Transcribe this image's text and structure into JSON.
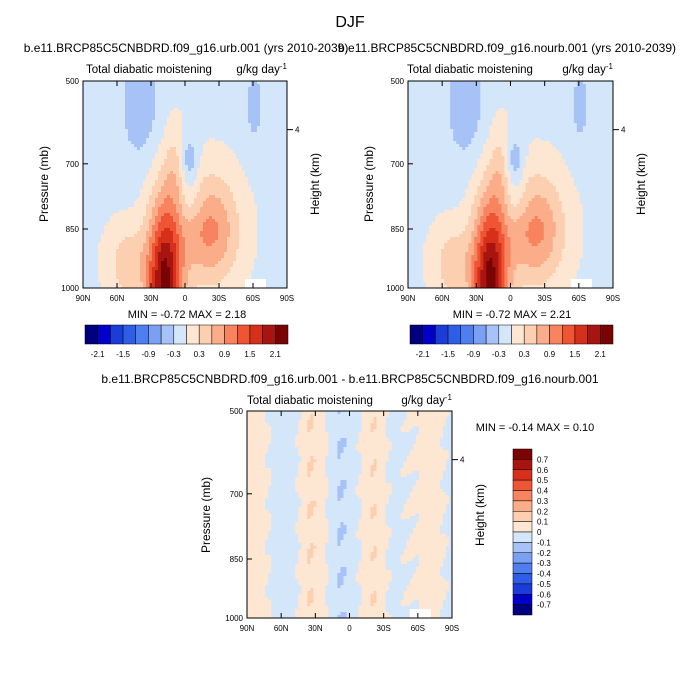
{
  "figure_title": "DJF",
  "chart_data": [
    {
      "type": "heatmap",
      "title": "b.e11.BRCP85C5CNBDRD.f09_g16.urb.001 (yrs 2010-2039)",
      "subtitle_left": "Total diabatic moistening",
      "units": "g/kg day",
      "units_exp": "-1",
      "ylabel": "Pressure (mb)",
      "ylabel_right": "Height (km)",
      "x_ticks": [
        "90N",
        "60N",
        "30N",
        "0",
        "30S",
        "60S",
        "90S"
      ],
      "y_ticks": [
        "500",
        "700",
        "850",
        "1000"
      ],
      "right_ticks": [
        "4"
      ],
      "min_max": "MIN = -0.72  MAX =  2.18",
      "colorbar_labels": [
        "-2.1",
        "-1.5",
        "-0.9",
        "-0.3",
        "0.3",
        "0.9",
        "1.5",
        "2.1"
      ]
    },
    {
      "type": "heatmap",
      "title": "b.e11.BRCP85C5CNBDRD.f09_g16.nourb.001 (yrs 2010-2039)",
      "subtitle_left": "Total diabatic moistening",
      "units": "g/kg day",
      "units_exp": "-1",
      "ylabel": "Pressure (mb)",
      "ylabel_right": "Height (km)",
      "x_ticks": [
        "90N",
        "60N",
        "30N",
        "0",
        "30S",
        "60S",
        "90S"
      ],
      "y_ticks": [
        "500",
        "700",
        "850",
        "1000"
      ],
      "right_ticks": [
        "4"
      ],
      "min_max": "MIN = -0.72  MAX =  2.21",
      "colorbar_labels": [
        "-2.1",
        "-1.5",
        "-0.9",
        "-0.3",
        "0.3",
        "0.9",
        "1.5",
        "2.1"
      ]
    },
    {
      "type": "heatmap",
      "title": "b.e11.BRCP85C5CNBDRD.f09_g16.urb.001 - b.e11.BRCP85C5CNBDRD.f09_g16.nourb.001",
      "subtitle_left": "Total diabatic moistening",
      "units": "g/kg day",
      "units_exp": "-1",
      "ylabel": "Pressure (mb)",
      "ylabel_right": "Height (km)",
      "x_ticks": [
        "90N",
        "60N",
        "30N",
        "0",
        "30S",
        "60S",
        "90S"
      ],
      "y_ticks": [
        "500",
        "700",
        "850",
        "1000"
      ],
      "right_ticks": [
        "4"
      ],
      "min_max": "MIN = -0.14  MAX =  0.10",
      "colorbar_labels": [
        "0.7",
        "0.6",
        "0.5",
        "0.4",
        "0.3",
        "0.2",
        "0.1",
        "0",
        "-0.1",
        "-0.2",
        "-0.3",
        "-0.4",
        "-0.5",
        "-0.6",
        "-0.7"
      ]
    }
  ],
  "colors": {
    "bg": "#ffffff",
    "cb_main": [
      "#00007f",
      "#0000c8",
      "#1a3cd8",
      "#2e5ee6",
      "#4f7ef0",
      "#7aa0f4",
      "#a6c2f6",
      "#d4e6fa",
      "#fde6d2",
      "#fccfb0",
      "#fbad8a",
      "#f7845e",
      "#ef5534",
      "#d6301b",
      "#a81511",
      "#7a0403"
    ],
    "cb_diff": [
      "#7a0403",
      "#a81511",
      "#d6301b",
      "#ef5534",
      "#f7845e",
      "#fbad8a",
      "#fccfb0",
      "#fde6d2",
      "#d4e6fa",
      "#a6c2f6",
      "#7aa0f4",
      "#4f7ef0",
      "#2e5ee6",
      "#1a3cd8",
      "#0000c8",
      "#00007f"
    ]
  }
}
